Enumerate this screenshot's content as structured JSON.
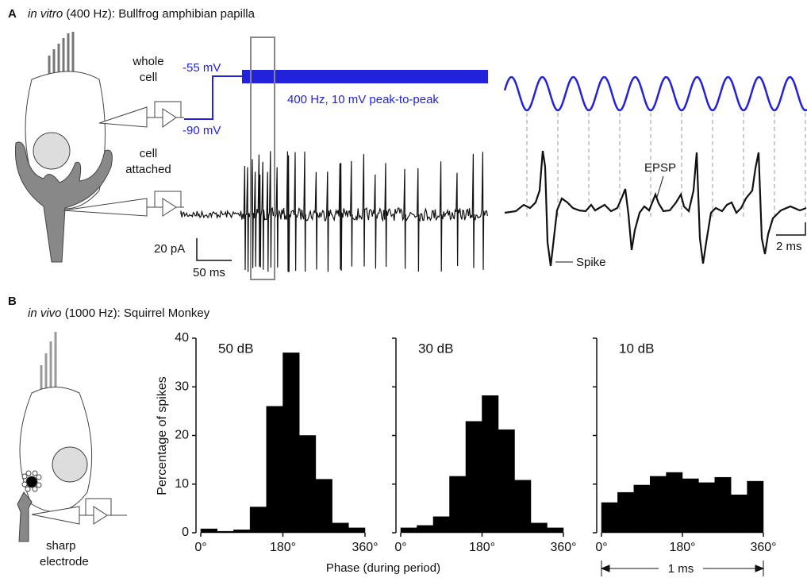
{
  "panel_a": {
    "letter": "A",
    "title_italic": "in vitro",
    "title_rest": " (400 Hz): Bullfrog amphibian papilla",
    "pipette_labels": [
      "whole",
      "cell",
      "cell",
      "attached"
    ],
    "hold_voltage": "-55 mV",
    "rest_voltage": "-90 mV",
    "stimulus": "400 Hz, 10 mV peak-to-peak",
    "current_scale": "20 pA",
    "time_scale": "50 ms",
    "epsp": "EPSP",
    "spike": "Spike",
    "zoom_time_scale": "2 ms"
  },
  "panel_b": {
    "letter": "B",
    "title_italic": "in vivo",
    "title_rest": " (1000 Hz): Squirrel Monkey",
    "electrode_labels": [
      "sharp",
      "electrode"
    ],
    "x_label": "Phase (during period)",
    "y_label": "Percentage of spikes",
    "period": "1 ms"
  },
  "chart_data": [
    {
      "type": "histogram",
      "title": "50 dB",
      "bins": [
        0,
        36,
        72,
        108,
        144,
        180,
        216,
        252,
        288,
        324,
        360
      ],
      "values": [
        0.8,
        0.3,
        0.6,
        5.3,
        26,
        37,
        20,
        11,
        2,
        1
      ],
      "color": "#000000",
      "xlim": [
        0,
        360
      ],
      "xticks": [
        {
          "value": 0,
          "label": "0°"
        },
        {
          "value": 180,
          "label": "180°"
        },
        {
          "value": 360,
          "label": "360°"
        }
      ],
      "ylim": [
        0,
        40
      ],
      "yticks": [
        0,
        10,
        20,
        30,
        40
      ],
      "show_ytick_labels": true
    },
    {
      "type": "histogram",
      "title": "30 dB",
      "bins": [
        0,
        36,
        72,
        108,
        144,
        180,
        216,
        252,
        288,
        324,
        360
      ],
      "values": [
        1,
        1.5,
        3.3,
        11.6,
        22.9,
        28.2,
        21.2,
        10.8,
        2,
        1
      ],
      "color": "#000000",
      "xlim": [
        0,
        360
      ],
      "xticks": [
        {
          "value": 0,
          "label": "0°"
        },
        {
          "value": 180,
          "label": "180°"
        },
        {
          "value": 360,
          "label": "360°"
        }
      ],
      "ylim": [
        0,
        40
      ],
      "yticks": [
        0,
        10,
        20,
        30,
        40
      ],
      "show_ytick_labels": false
    },
    {
      "type": "histogram",
      "title": "10 dB",
      "bins": [
        0,
        36,
        72,
        108,
        144,
        180,
        216,
        252,
        288,
        324,
        360
      ],
      "values": [
        6.2,
        8.3,
        9.8,
        11.6,
        12.4,
        11.1,
        10.3,
        11.4,
        7.8,
        10.6
      ],
      "color": "#000000",
      "xlim": [
        0,
        360
      ],
      "xticks": [
        {
          "value": 0,
          "label": "0°"
        },
        {
          "value": 180,
          "label": "180°"
        },
        {
          "value": 360,
          "label": "360°"
        }
      ],
      "ylim": [
        0,
        40
      ],
      "yticks": [
        0,
        10,
        20,
        30,
        40
      ],
      "show_ytick_labels": false
    }
  ]
}
